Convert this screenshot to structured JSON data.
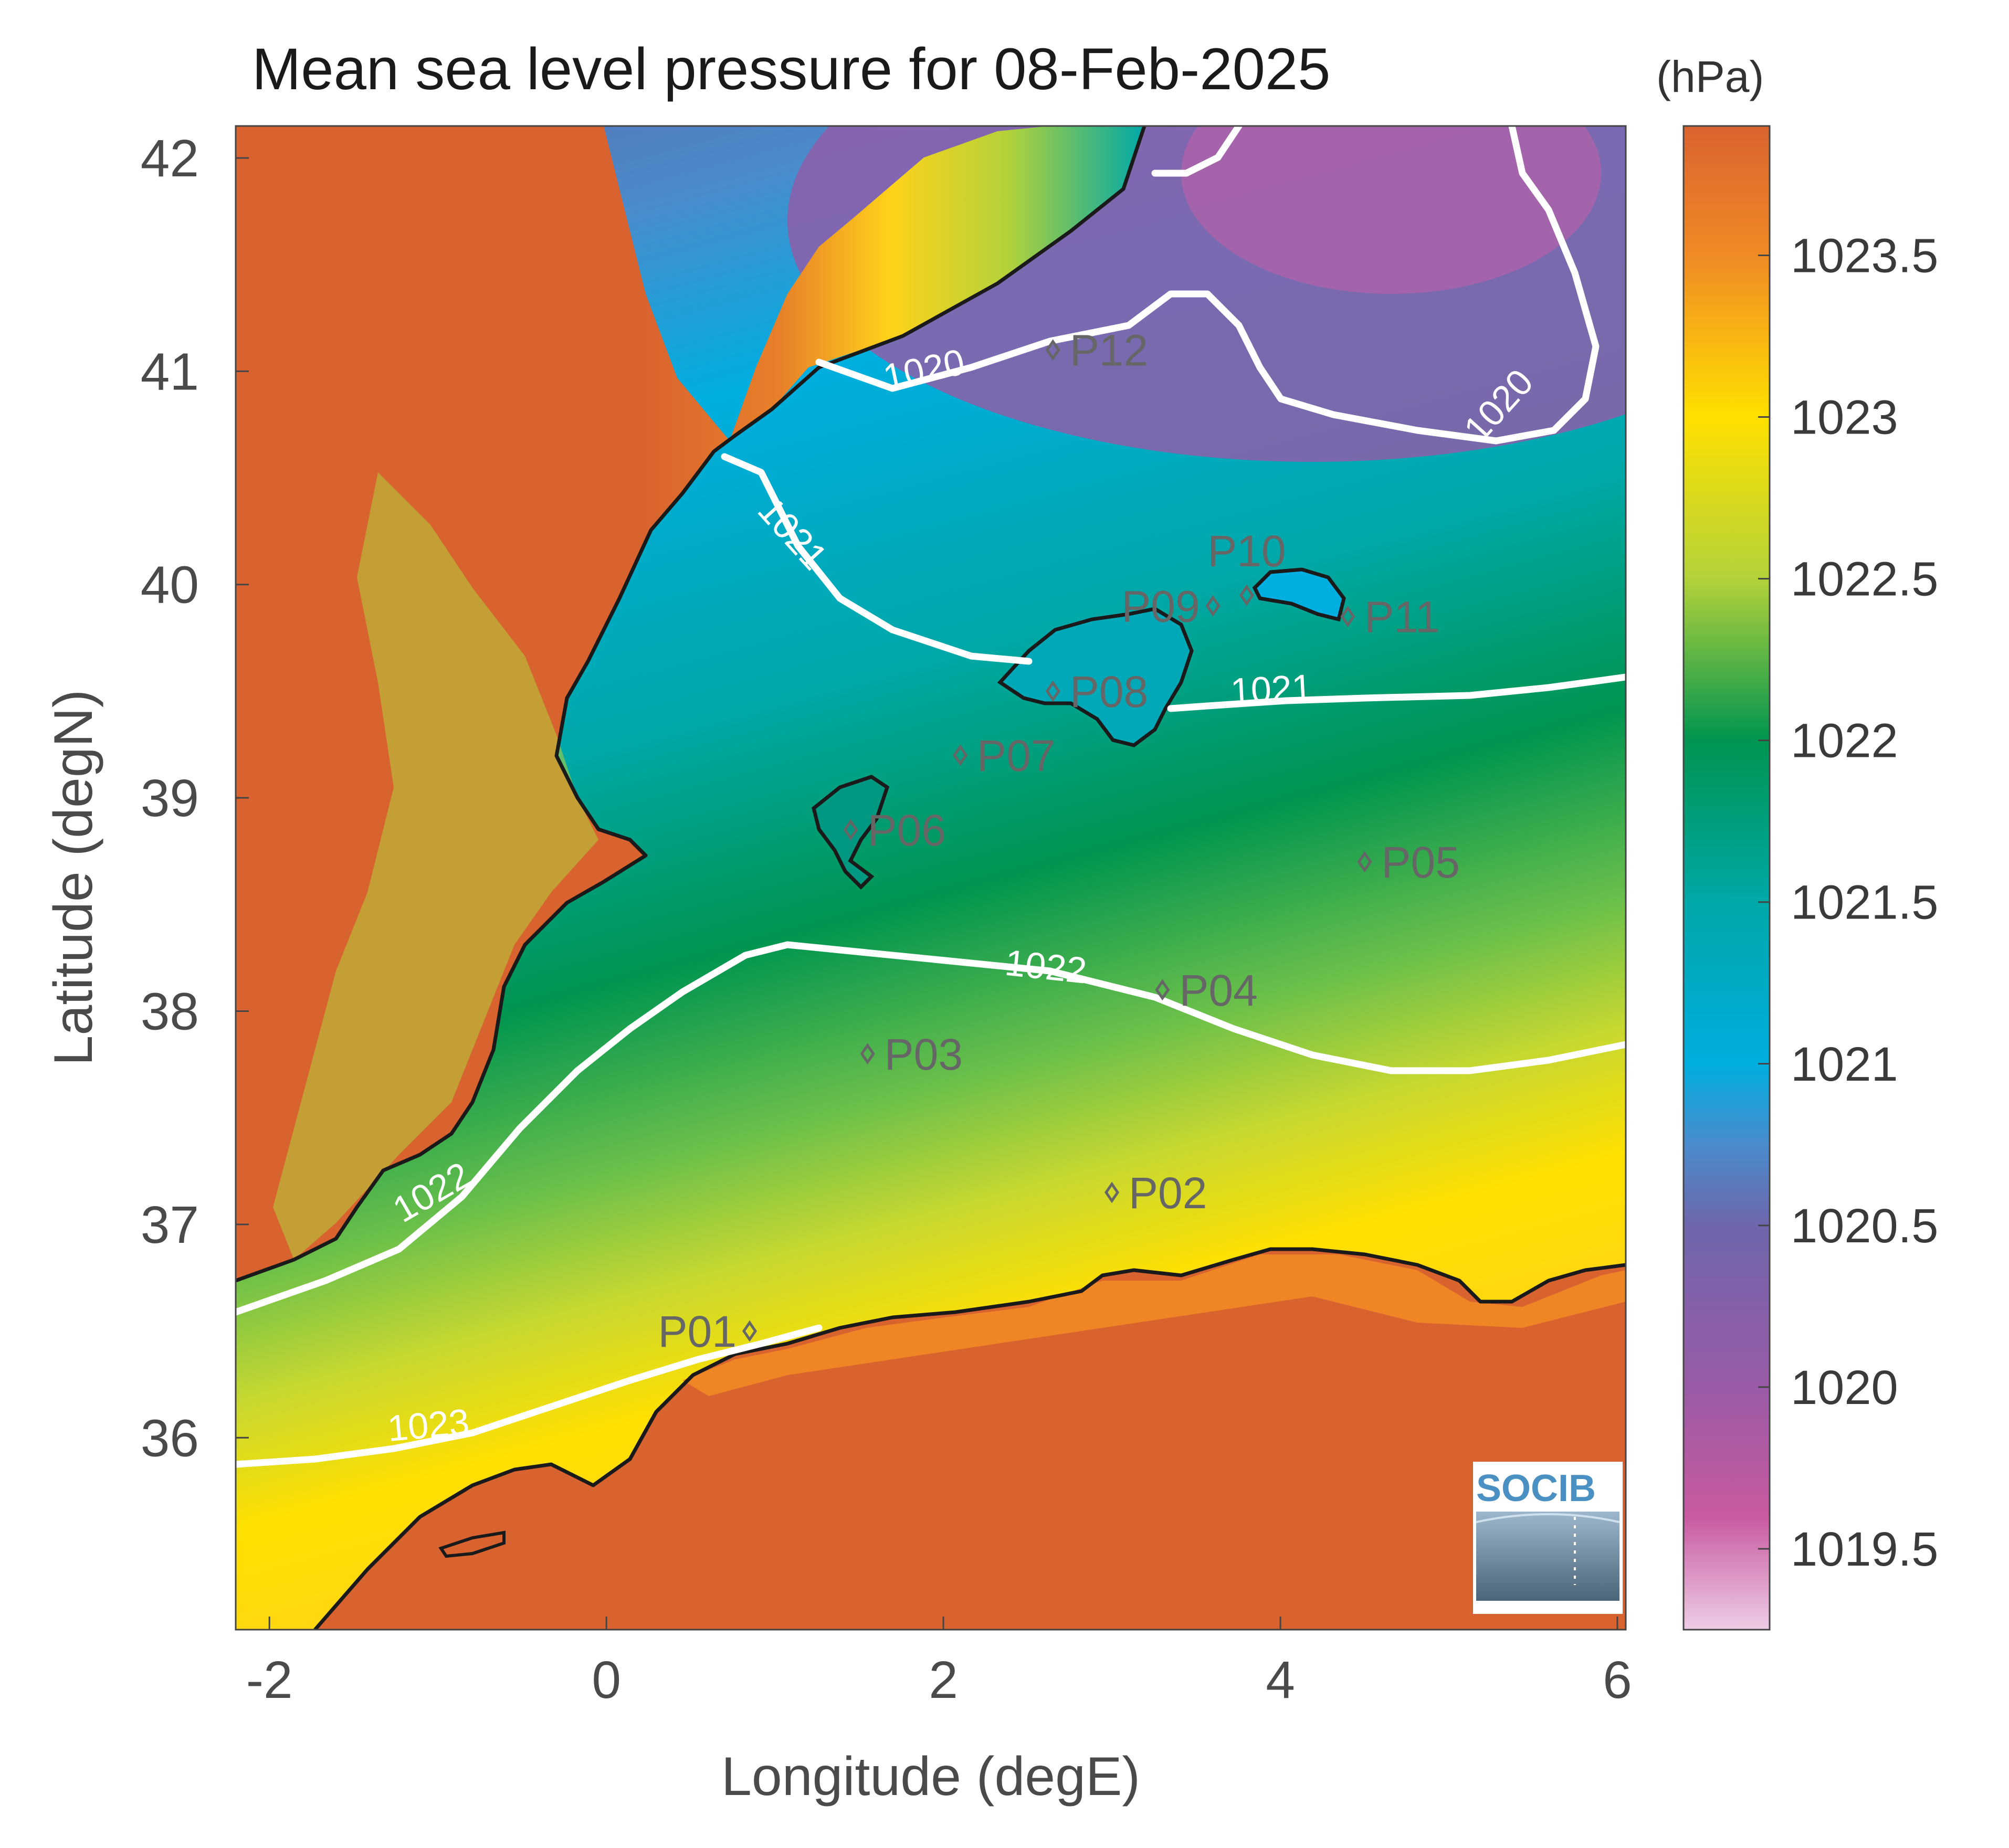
{
  "title": "Mean sea level pressure for 08-Feb-2025",
  "unit": "(hPa)",
  "x_axis": {
    "label": "Longitude (degE)",
    "range": [
      -2.2,
      6.05
    ],
    "ticks": [
      {
        "value": -2,
        "label": "-2"
      },
      {
        "value": 0,
        "label": "0"
      },
      {
        "value": 2,
        "label": "2"
      },
      {
        "value": 4,
        "label": "4"
      },
      {
        "value": 6,
        "label": "6"
      }
    ]
  },
  "y_axis": {
    "label": "Latitude (degN)",
    "range": [
      35.1,
      42.15
    ],
    "ticks": [
      {
        "value": 36,
        "label": "36"
      },
      {
        "value": 37,
        "label": "37"
      },
      {
        "value": 38,
        "label": "38"
      },
      {
        "value": 39,
        "label": "39"
      },
      {
        "value": 40,
        "label": "40"
      },
      {
        "value": 41,
        "label": "41"
      },
      {
        "value": 42,
        "label": "42"
      }
    ]
  },
  "colorbar": {
    "range": [
      1019.25,
      1023.9
    ],
    "ticks": [
      {
        "value": 1019.5,
        "label": "1019.5"
      },
      {
        "value": 1020,
        "label": "1020"
      },
      {
        "value": 1020.5,
        "label": "1020.5"
      },
      {
        "value": 1021,
        "label": "1021"
      },
      {
        "value": 1021.5,
        "label": "1021.5"
      },
      {
        "value": 1022,
        "label": "1022"
      },
      {
        "value": 1022.5,
        "label": "1022.5"
      },
      {
        "value": 1023,
        "label": "1023"
      },
      {
        "value": 1023.5,
        "label": "1023.5"
      }
    ],
    "stops": [
      {
        "value": 1019.25,
        "color": "#eecde6"
      },
      {
        "value": 1019.6,
        "color": "#c85aa0"
      },
      {
        "value": 1020.0,
        "color": "#9a5ba6"
      },
      {
        "value": 1020.5,
        "color": "#6f66ac"
      },
      {
        "value": 1020.75,
        "color": "#4a8ccc"
      },
      {
        "value": 1021.0,
        "color": "#00aee0"
      },
      {
        "value": 1021.5,
        "color": "#00a8a8"
      },
      {
        "value": 1022.0,
        "color": "#009550"
      },
      {
        "value": 1022.5,
        "color": "#b3d23a"
      },
      {
        "value": 1023.0,
        "color": "#ffe000"
      },
      {
        "value": 1023.5,
        "color": "#f08a25"
      },
      {
        "value": 1023.9,
        "color": "#d9632f"
      }
    ]
  },
  "stations": [
    {
      "id": "P01",
      "lon": 0.85,
      "lat": 36.5,
      "label_side": "left"
    },
    {
      "id": "P02",
      "lon": 3.0,
      "lat": 37.15,
      "label_side": "right"
    },
    {
      "id": "P03",
      "lon": 1.55,
      "lat": 37.8,
      "label_side": "right"
    },
    {
      "id": "P04",
      "lon": 3.3,
      "lat": 38.1,
      "label_side": "right"
    },
    {
      "id": "P05",
      "lon": 4.5,
      "lat": 38.7,
      "label_side": "right"
    },
    {
      "id": "P06",
      "lon": 1.45,
      "lat": 38.85,
      "label_side": "right"
    },
    {
      "id": "P07",
      "lon": 2.1,
      "lat": 39.2,
      "label_side": "right"
    },
    {
      "id": "P08",
      "lon": 2.65,
      "lat": 39.5,
      "label_side": "right"
    },
    {
      "id": "P09",
      "lon": 3.6,
      "lat": 39.9,
      "label_side": "left"
    },
    {
      "id": "P10",
      "lon": 3.8,
      "lat": 39.95,
      "label_side": "above"
    },
    {
      "id": "P11",
      "lon": 4.4,
      "lat": 39.85,
      "label_side": "right"
    },
    {
      "id": "P12",
      "lon": 2.65,
      "lat": 41.1,
      "label_side": "right"
    }
  ],
  "contour_labels": [
    {
      "text": "1020",
      "lon": 1.9,
      "lat": 40.95,
      "angle": -12
    },
    {
      "text": "1020",
      "lon": 5.35,
      "lat": 40.8,
      "angle": -48
    },
    {
      "text": "1021",
      "lon": 1.05,
      "lat": 40.2,
      "angle": 48
    },
    {
      "text": "1021",
      "lon": 3.95,
      "lat": 39.45,
      "angle": -3
    },
    {
      "text": "1022",
      "lon": 2.6,
      "lat": 38.15,
      "angle": 6
    },
    {
      "text": "1022",
      "lon": -1.0,
      "lat": 37.1,
      "angle": -30
    },
    {
      "text": "1023",
      "lon": -1.05,
      "lat": 36.0,
      "angle": -5
    }
  ],
  "logo": {
    "text": "SOCIB"
  }
}
